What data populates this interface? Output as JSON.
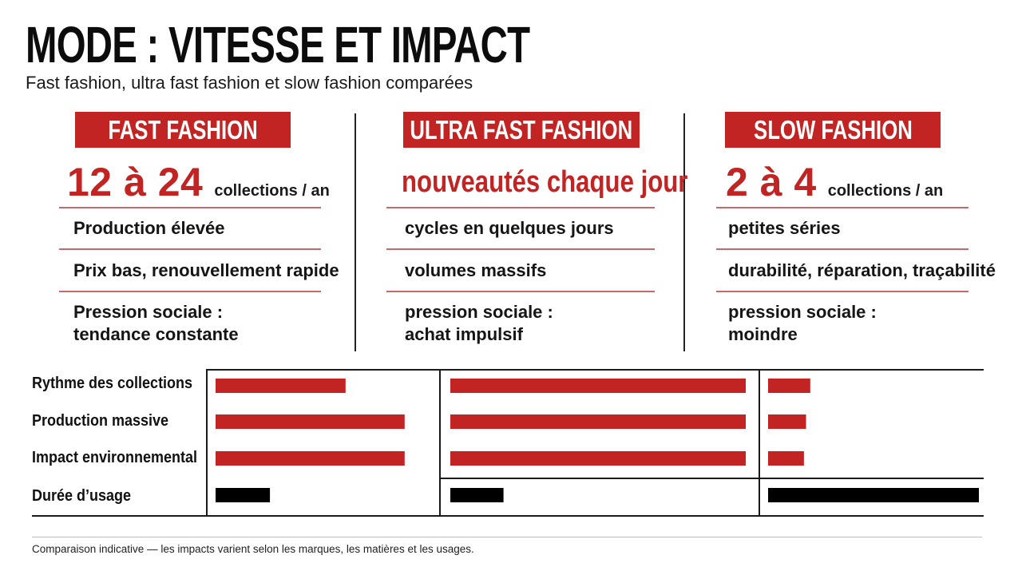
{
  "header": {
    "title": "MODE : VITESSE ET IMPACT",
    "subtitle": "Fast fashion, ultra fast fashion et slow fashion comparées"
  },
  "columns": [
    {
      "badge": "FAST FASHION",
      "headline_value": "12 à 24",
      "headline_unit": "collections / an",
      "items": [
        "Production élevée",
        "Prix bas, renouvellement rapide",
        "Pression sociale :",
        "tendance constante"
      ]
    },
    {
      "badge": "ULTRA FAST FASHION",
      "headline_value": "nouveautés chaque jour",
      "headline_unit": "",
      "items": [
        "cycles en quelques jours",
        "volumes massifs",
        "pression sociale :",
        "achat impulsif"
      ]
    },
    {
      "badge": "SLOW FASHION",
      "headline_value": "2 à 4",
      "headline_unit": "collections / an",
      "items": [
        "petites séries",
        "durabilité, réparation, traçabilité",
        "pression sociale :",
        "moindre"
      ]
    }
  ],
  "chart_data": {
    "type": "bar",
    "orientation": "horizontal",
    "categories": [
      "Rythme des collections",
      "Production massive",
      "Impact environnemental",
      "Durée d’usage"
    ],
    "series": [
      {
        "name": "FAST FASHION",
        "values": [
          0.55,
          0.8,
          0.8,
          0.23
        ]
      },
      {
        "name": "ULTRA FAST FASHION",
        "values": [
          1.0,
          1.0,
          1.0,
          0.18
        ]
      },
      {
        "name": "SLOW FASHION",
        "values": [
          0.2,
          0.18,
          0.17,
          1.0
        ]
      }
    ],
    "colors": {
      "impact": "#c22323",
      "usage": "#000000"
    },
    "scale": "relative",
    "grid": true
  },
  "footer": {
    "note": "Comparaison indicative — les impacts varient selon les marques, les matières et les usages."
  }
}
